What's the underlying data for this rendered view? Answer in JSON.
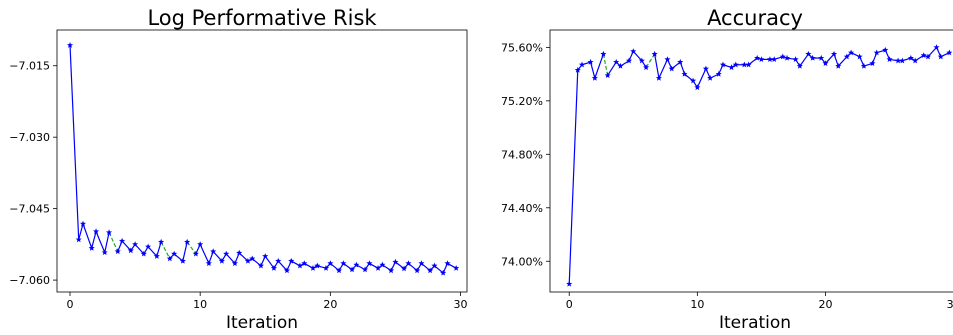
{
  "chart_data": [
    {
      "type": "line",
      "title": "Log Performative Risk",
      "xlabel": "Iteration",
      "ylabel": "",
      "xlim": [
        -1,
        30.5
      ],
      "ylim": [
        -7.0625,
        -7.0075
      ],
      "xticks": [
        0,
        10,
        20,
        30
      ],
      "yticks": [
        -7.015,
        -7.03,
        -7.045,
        -7.06
      ],
      "xtick_labels": [
        "0",
        "10",
        "20",
        "30"
      ],
      "ytick_labels": [
        "−7.015",
        "−7.030",
        "−7.045",
        "−7.060"
      ],
      "colors": {
        "solid": "#0000ff",
        "dashed": "#22aa22",
        "marker": "#0000ff"
      },
      "marker": "star",
      "x": [
        0,
        0.667,
        1,
        1.667,
        2,
        2.667,
        3,
        3.667,
        4,
        4.667,
        5,
        5.667,
        6,
        6.667,
        7,
        7.667,
        8,
        8.667,
        9,
        9.667,
        10,
        10.667,
        11,
        11.667,
        12,
        12.667,
        13,
        13.667,
        14,
        14.667,
        15,
        15.667,
        16,
        16.667,
        17,
        17.667,
        18,
        18.667,
        19,
        19.667,
        20,
        20.667,
        21,
        21.667,
        22,
        22.667,
        23,
        23.667,
        24,
        24.667,
        25,
        25.667,
        26,
        26.667,
        27,
        27.667,
        28,
        28.667,
        29,
        29.667
      ],
      "y": [
        -7.0107,
        -7.0515,
        -7.0482,
        -7.0533,
        -7.0498,
        -7.0542,
        -7.05,
        -7.054,
        -7.0518,
        -7.0538,
        -7.0525,
        -7.0545,
        -7.053,
        -7.055,
        -7.052,
        -7.0555,
        -7.0545,
        -7.056,
        -7.052,
        -7.0545,
        -7.0525,
        -7.0565,
        -7.054,
        -7.056,
        -7.0545,
        -7.0565,
        -7.0543,
        -7.056,
        -7.0555,
        -7.057,
        -7.055,
        -7.0575,
        -7.056,
        -7.058,
        -7.056,
        -7.057,
        -7.0565,
        -7.0575,
        -7.057,
        -7.0575,
        -7.0565,
        -7.058,
        -7.0565,
        -7.0578,
        -7.0568,
        -7.0578,
        -7.0565,
        -7.0575,
        -7.0568,
        -7.058,
        -7.0562,
        -7.0576,
        -7.0565,
        -7.058,
        -7.0565,
        -7.058,
        -7.057,
        -7.0585,
        -7.0565,
        -7.0575
      ],
      "dashed_segments_after_index": [
        6,
        14,
        18
      ]
    },
    {
      "type": "line",
      "title": "Accuracy",
      "xlabel": "Iteration",
      "ylabel": "",
      "xlim": [
        -1.5,
        30.5
      ],
      "ylim": [
        73.77,
        75.73
      ],
      "xticks": [
        0,
        10,
        20,
        30
      ],
      "yticks": [
        74.0,
        74.4,
        74.8,
        75.2,
        75.6
      ],
      "xtick_labels": [
        "0",
        "10",
        "20",
        "30"
      ],
      "ytick_labels": [
        "74.00%",
        "74.40%",
        "74.80%",
        "75.20%",
        "75.60%"
      ],
      "colors": {
        "solid": "#0000ff",
        "dashed": "#22aa22",
        "marker": "#0000ff"
      },
      "marker": "star",
      "x": [
        0,
        0.667,
        1,
        1.667,
        2,
        2.667,
        3,
        3.667,
        4,
        4.667,
        5,
        5.667,
        6,
        6.667,
        7,
        7.667,
        8,
        8.667,
        9,
        9.667,
        10,
        10.667,
        11,
        11.667,
        12,
        12.667,
        13,
        13.667,
        14,
        14.667,
        15,
        15.667,
        16,
        16.667,
        17,
        17.667,
        18,
        18.667,
        19,
        19.667,
        20,
        20.667,
        21,
        21.667,
        22,
        22.667,
        23,
        23.667,
        24,
        24.667,
        25,
        25.667,
        26,
        26.667,
        27,
        27.667,
        28,
        28.667,
        29,
        29.667
      ],
      "y": [
        73.83,
        75.43,
        75.47,
        75.49,
        75.37,
        75.55,
        75.39,
        75.49,
        75.46,
        75.5,
        75.57,
        75.5,
        75.45,
        75.55,
        75.37,
        75.51,
        75.44,
        75.49,
        75.4,
        75.35,
        75.3,
        75.44,
        75.37,
        75.4,
        75.47,
        75.45,
        75.47,
        75.47,
        75.47,
        75.52,
        75.51,
        75.51,
        75.51,
        75.53,
        75.52,
        75.51,
        75.46,
        75.55,
        75.52,
        75.52,
        75.48,
        75.55,
        75.46,
        75.53,
        75.56,
        75.53,
        75.46,
        75.48,
        75.56,
        75.58,
        75.51,
        75.5,
        75.5,
        75.52,
        75.5,
        75.54,
        75.53,
        75.6,
        75.53,
        75.56
      ],
      "dashed_segments_after_index": [
        5,
        12
      ]
    }
  ]
}
